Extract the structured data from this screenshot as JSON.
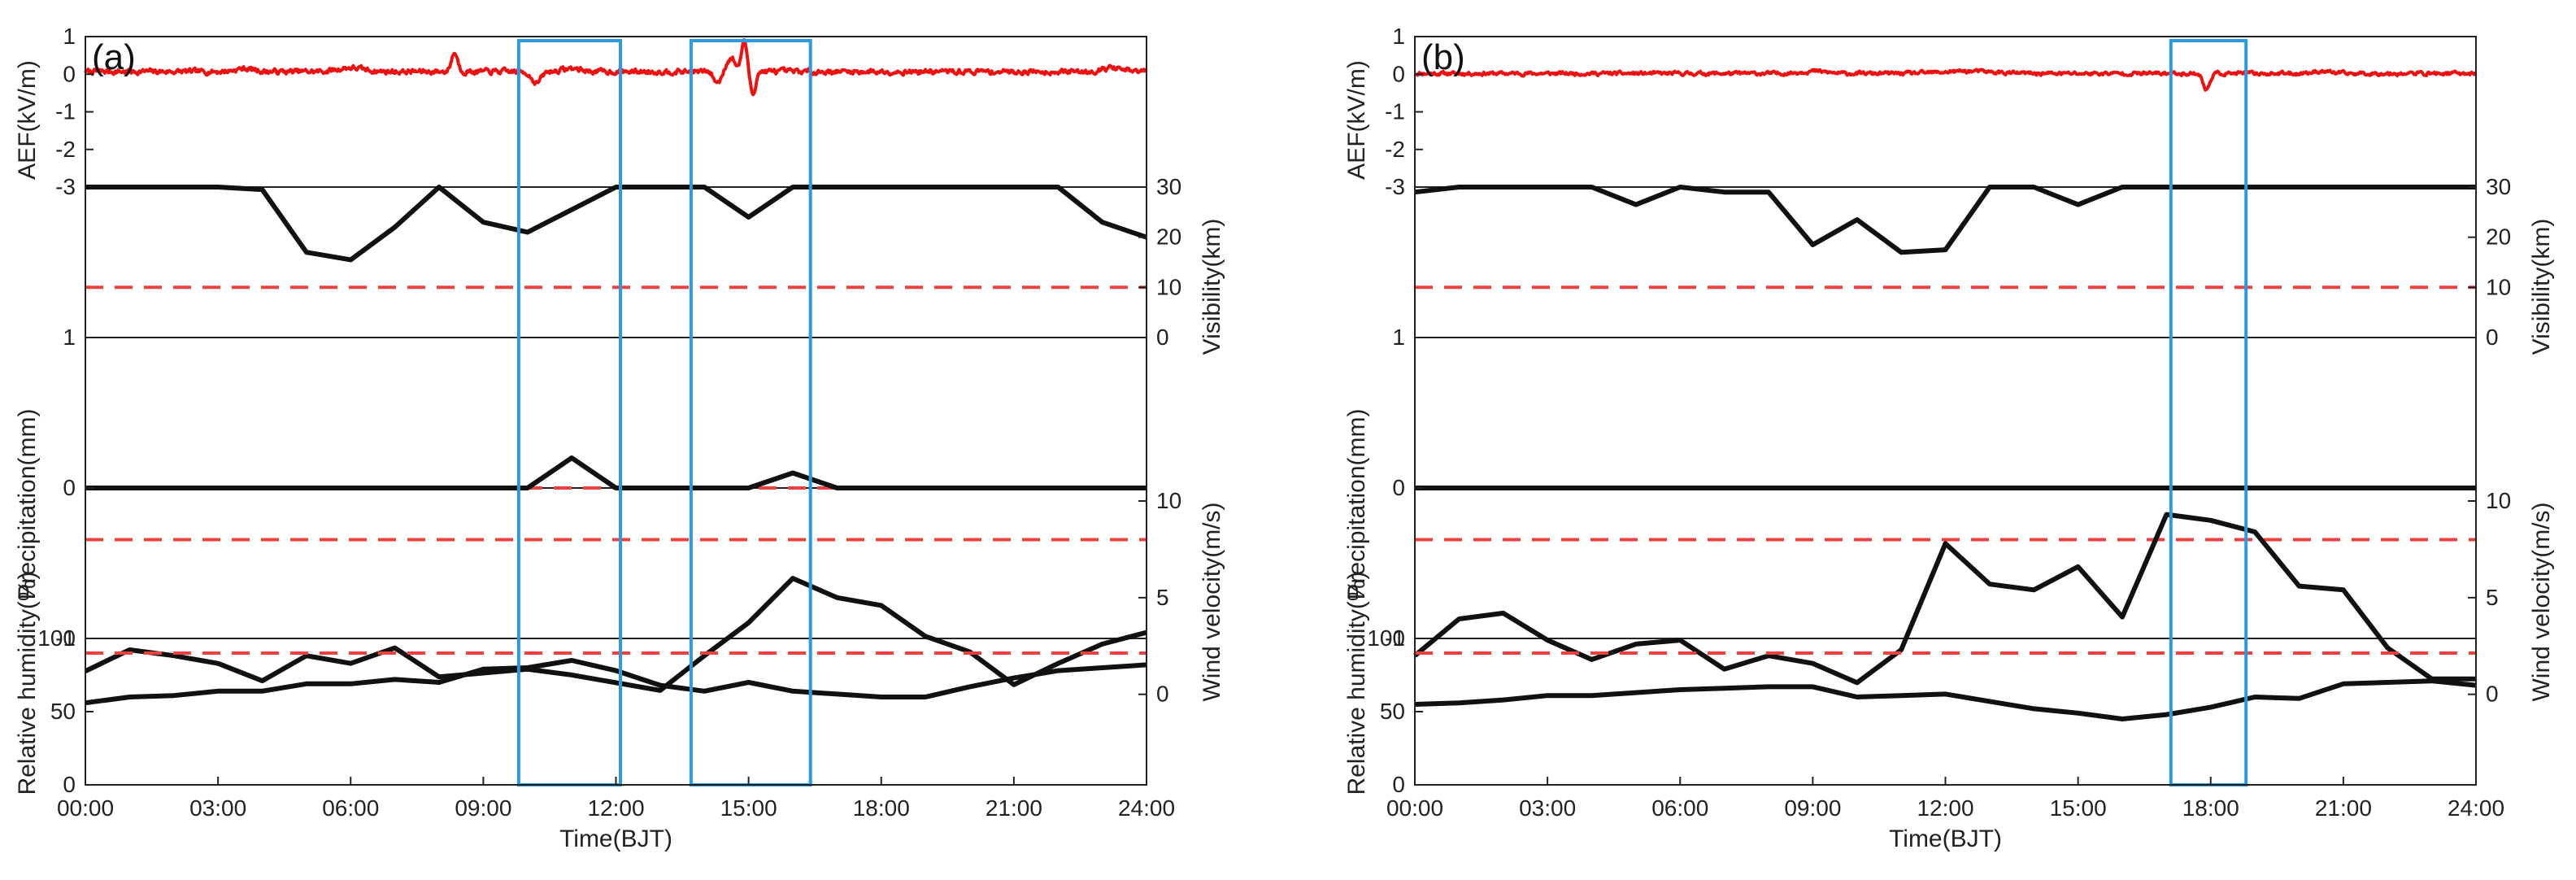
{
  "chart_data": [
    {
      "type": "line",
      "panel_tag": "(a)",
      "xlabel": "Time(BJT)",
      "x_ticks": [
        "00:00",
        "03:00",
        "06:00",
        "09:00",
        "12:00",
        "15:00",
        "18:00",
        "21:00",
        "24:00"
      ],
      "xlim": [
        0,
        24
      ],
      "highlight_windows": [
        [
          9.8,
          12.1
        ],
        [
          13.7,
          16.4
        ]
      ],
      "aef": {
        "ylabel": "AEF(kV/m)",
        "ylim": [
          -3,
          1
        ],
        "y_ticks": [
          "1",
          "0",
          "-1",
          "-2",
          "-3"
        ],
        "baseline": 0.07,
        "noise": 0.05,
        "seed": 7,
        "events": [
          {
            "t": 3.6,
            "a": 0.08,
            "w": 0.3
          },
          {
            "t": 6.0,
            "a": 0.1,
            "w": 0.4
          },
          {
            "t": 8.35,
            "a": 0.5,
            "w": 0.1
          },
          {
            "t": 10.2,
            "a": -0.3,
            "w": 0.15
          },
          {
            "t": 11.0,
            "a": 0.08,
            "w": 0.3
          },
          {
            "t": 14.3,
            "a": -0.3,
            "w": 0.12
          },
          {
            "t": 14.6,
            "a": 0.35,
            "w": 0.15
          },
          {
            "t": 14.9,
            "a": 0.85,
            "w": 0.08
          },
          {
            "t": 15.1,
            "a": -0.6,
            "w": 0.08
          },
          {
            "t": 23.2,
            "a": 0.1,
            "w": 0.3
          }
        ]
      },
      "visibility": {
        "ylabel": "Visibility(km)",
        "ylim": [
          0,
          30
        ],
        "y_ticks": [
          "30",
          "20",
          "10",
          "0"
        ],
        "threshold": 10,
        "x": [
          0,
          1,
          2,
          3,
          4,
          5,
          6,
          7,
          8,
          9,
          10,
          11,
          12,
          13,
          14,
          15,
          16,
          17,
          18,
          19,
          20,
          21,
          22,
          23,
          24
        ],
        "values": [
          30,
          30,
          30,
          30,
          29.5,
          17,
          15.5,
          22,
          30,
          23,
          21,
          25.5,
          30,
          30,
          30,
          24,
          30,
          30,
          30,
          30,
          30,
          30,
          30,
          23,
          20
        ]
      },
      "precipitation": {
        "ylabel": "Precipitation(mm)",
        "ylim": [
          -1,
          1
        ],
        "y_ticks": [
          "1",
          "0",
          "-1"
        ],
        "threshold": 0,
        "x": [
          0,
          1,
          2,
          3,
          4,
          5,
          6,
          7,
          8,
          9,
          10,
          11,
          12,
          13,
          14,
          15,
          16,
          17,
          18,
          19,
          20,
          21,
          22,
          23,
          24
        ],
        "values": [
          0,
          0,
          0,
          0,
          0,
          0,
          0,
          0,
          0,
          0,
          0,
          0.2,
          0,
          0,
          0,
          0,
          0.1,
          0,
          0,
          0,
          0,
          0,
          0,
          0,
          0
        ]
      },
      "wind": {
        "ylabel": "Wind velocity(m/s)",
        "ylim": [
          -3,
          10
        ],
        "y_ticks": [
          "10",
          "5",
          "0"
        ],
        "threshold": 8,
        "x": [
          0,
          1,
          2,
          3,
          4,
          5,
          6,
          7,
          8,
          9,
          10,
          11,
          12,
          13,
          14,
          15,
          16,
          17,
          18,
          19,
          20,
          21,
          22,
          23,
          24
        ],
        "values": [
          1.2,
          2.3,
          2.0,
          1.6,
          0.7,
          2.0,
          1.6,
          2.4,
          0.9,
          1.1,
          1.3,
          1.0,
          0.6,
          0.2,
          2.0,
          3.7,
          6.0,
          5.0,
          4.6,
          3.0,
          2.2,
          0.5,
          1.6,
          2.6,
          3.2
        ]
      },
      "humidity": {
        "ylabel": "Relative humidity(%)",
        "ylim": [
          0,
          100
        ],
        "y_ticks": [
          "100",
          "50",
          "0"
        ],
        "threshold": 90,
        "x": [
          0,
          1,
          2,
          3,
          4,
          5,
          6,
          7,
          8,
          9,
          10,
          11,
          12,
          13,
          14,
          15,
          16,
          17,
          18,
          19,
          20,
          21,
          22,
          23,
          24
        ],
        "values": [
          56,
          60,
          61,
          64,
          64,
          69,
          69,
          72,
          70,
          79,
          80,
          85,
          78,
          68,
          64,
          70,
          64,
          62,
          60,
          60,
          67,
          73,
          78,
          80,
          82
        ]
      }
    },
    {
      "type": "line",
      "panel_tag": "(b)",
      "xlabel": "Time(BJT)",
      "x_ticks": [
        "00:00",
        "03:00",
        "06:00",
        "09:00",
        "12:00",
        "15:00",
        "18:00",
        "21:00",
        "24:00"
      ],
      "xlim": [
        0,
        24
      ],
      "highlight_windows": [
        [
          17.1,
          18.8
        ]
      ],
      "aef": {
        "ylabel": "AEF(kV/m)",
        "ylim": [
          -3,
          1
        ],
        "y_ticks": [
          "1",
          "0",
          "-1",
          "-2",
          "-3"
        ],
        "baseline": 0.02,
        "noise": 0.035,
        "seed": 11,
        "events": [
          {
            "t": 9.0,
            "a": 0.06,
            "w": 0.4
          },
          {
            "t": 12.5,
            "a": 0.06,
            "w": 0.8
          },
          {
            "t": 17.9,
            "a": -0.45,
            "w": 0.1
          },
          {
            "t": 20.5,
            "a": 0.06,
            "w": 0.3
          }
        ]
      },
      "visibility": {
        "ylabel": "Visibility(km)",
        "ylim": [
          0,
          30
        ],
        "y_ticks": [
          "30",
          "20",
          "10",
          "0"
        ],
        "threshold": 10,
        "x": [
          0,
          1,
          2,
          3,
          4,
          5,
          6,
          7,
          8,
          9,
          10,
          11,
          12,
          13,
          14,
          15,
          16,
          17,
          18,
          19,
          20,
          21,
          22,
          23,
          24
        ],
        "values": [
          29,
          30,
          30,
          30,
          30,
          26.5,
          30,
          29,
          29,
          18.5,
          23.5,
          17,
          17.5,
          30,
          30,
          26.5,
          30,
          30,
          30,
          30,
          30,
          30,
          30,
          30,
          30
        ]
      },
      "precipitation": {
        "ylabel": "Precipitation(mm)",
        "ylim": [
          -1,
          1
        ],
        "y_ticks": [
          "1",
          "0",
          "-1"
        ],
        "threshold": 0,
        "x": [
          0,
          1,
          2,
          3,
          4,
          5,
          6,
          7,
          8,
          9,
          10,
          11,
          12,
          13,
          14,
          15,
          16,
          17,
          18,
          19,
          20,
          21,
          22,
          23,
          24
        ],
        "values": [
          0,
          0,
          0,
          0,
          0,
          0,
          0,
          0,
          0,
          0,
          0,
          0,
          0,
          0,
          0,
          0,
          0,
          0,
          0,
          0,
          0,
          0,
          0,
          0,
          0
        ]
      },
      "wind": {
        "ylabel": "Wind velocity(m/s)",
        "ylim": [
          -3,
          10
        ],
        "y_ticks": [
          "10",
          "5",
          "0"
        ],
        "threshold": 8,
        "x": [
          0,
          1,
          2,
          3,
          4,
          5,
          6,
          7,
          8,
          9,
          10,
          11,
          12,
          13,
          14,
          15,
          16,
          17,
          18,
          19,
          20,
          21,
          22,
          23,
          24
        ],
        "values": [
          2.0,
          3.9,
          4.2,
          2.8,
          1.8,
          2.6,
          2.8,
          1.3,
          2.0,
          1.6,
          0.6,
          2.3,
          7.8,
          5.7,
          5.4,
          6.6,
          4.0,
          9.3,
          9.0,
          8.4,
          5.6,
          5.4,
          2.4,
          0.8,
          0.8
        ]
      },
      "humidity": {
        "ylabel": "Relative humidity(%)",
        "ylim": [
          0,
          100
        ],
        "y_ticks": [
          "100",
          "50",
          "0"
        ],
        "threshold": 90,
        "x": [
          0,
          1,
          2,
          3,
          4,
          5,
          6,
          7,
          8,
          9,
          10,
          11,
          12,
          13,
          14,
          15,
          16,
          17,
          18,
          19,
          20,
          21,
          22,
          23,
          24
        ],
        "values": [
          55,
          56,
          58,
          61,
          61,
          63,
          65,
          66,
          67,
          67,
          60,
          61,
          62,
          57,
          52,
          49,
          45,
          48,
          53,
          60,
          59,
          69,
          70,
          71,
          68
        ]
      }
    }
  ]
}
